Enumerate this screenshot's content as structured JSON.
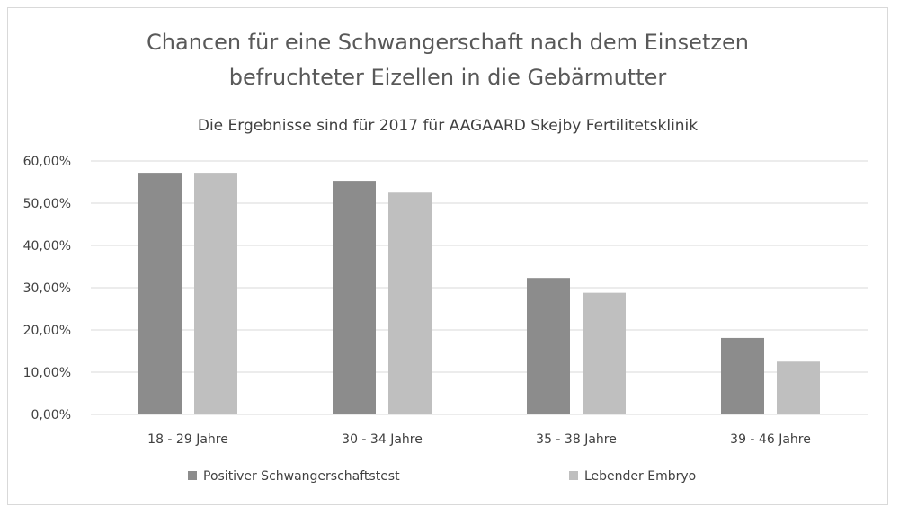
{
  "chart_data": {
    "type": "bar",
    "title_lines": [
      "Chancen für eine Schwangerschaft nach dem Einsetzen",
      "befruchteter Eizellen in die Gebärmutter"
    ],
    "subtitle": "Die Ergebnisse sind für 2017 für AAGAARD Skejby Fertilitetsklinik",
    "xlabel": "",
    "ylabel": "",
    "ylim": [
      0,
      0.6
    ],
    "yticks": [
      {
        "value": 0.0,
        "label": "0,00%"
      },
      {
        "value": 0.1,
        "label": "10,00%"
      },
      {
        "value": 0.2,
        "label": "20,00%"
      },
      {
        "value": 0.3,
        "label": "30,00%"
      },
      {
        "value": 0.4,
        "label": "40,00%"
      },
      {
        "value": 0.5,
        "label": "50,00%"
      },
      {
        "value": 0.6,
        "label": "60,00%"
      }
    ],
    "categories": [
      "18 - 29 Jahre",
      "30 - 34 Jahre",
      "35 - 38 Jahre",
      "39 - 46 Jahre"
    ],
    "series": [
      {
        "name": "Positiver Schwangerschaftstest",
        "color": "#8c8c8c",
        "values": [
          0.57,
          0.553,
          0.323,
          0.181
        ]
      },
      {
        "name": "Lebender Embryo",
        "color": "#bfbfbf",
        "values": [
          0.57,
          0.525,
          0.288,
          0.125
        ]
      }
    ],
    "grid": true,
    "legend_position": "bottom"
  }
}
